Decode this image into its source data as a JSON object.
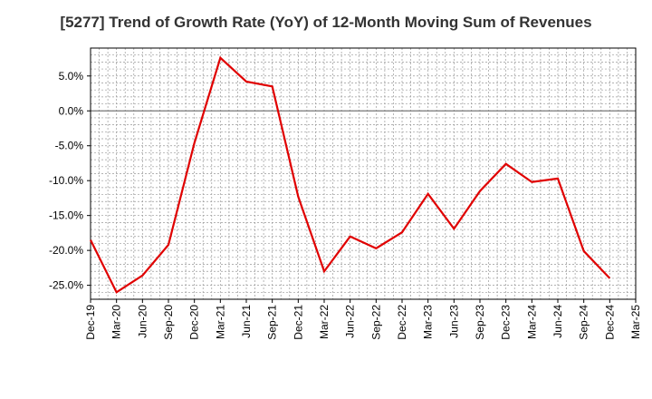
{
  "chart_data": {
    "type": "line",
    "title": "[5277]  Trend of Growth Rate (YoY) of 12-Month Moving Sum of Revenues",
    "xlabel": "",
    "ylabel": "",
    "x_ticks": [
      "Dec-19",
      "Mar-20",
      "Jun-20",
      "Sep-20",
      "Dec-20",
      "Mar-21",
      "Jun-21",
      "Sep-21",
      "Dec-21",
      "Mar-22",
      "Jun-22",
      "Sep-22",
      "Dec-22",
      "Mar-23",
      "Jun-23",
      "Sep-23",
      "Dec-23",
      "Mar-24",
      "Jun-24",
      "Sep-24",
      "Dec-24",
      "Mar-25"
    ],
    "y_ticks": [
      "5.0%",
      "0.0%",
      "-5.0%",
      "-10.0%",
      "-15.0%",
      "-20.0%",
      "-25.0%"
    ],
    "y_tick_values": [
      5,
      0,
      -5,
      -10,
      -15,
      -20,
      -25
    ],
    "ylim": [
      -27,
      9
    ],
    "grid": true,
    "series": [
      {
        "color": "#e00000",
        "x": [
          "Dec-19",
          "Mar-20",
          "Jun-20",
          "Sep-20",
          "Dec-20",
          "Mar-21",
          "Jun-21",
          "Sep-21",
          "Dec-21",
          "Mar-22",
          "Jun-22",
          "Sep-22",
          "Dec-22",
          "Mar-23",
          "Jun-23",
          "Sep-23",
          "Dec-23",
          "Mar-24",
          "Jun-24",
          "Sep-24",
          "Dec-24"
        ],
        "values": [
          -18.5,
          -26.0,
          -23.6,
          -19.2,
          -4.6,
          7.6,
          4.2,
          3.5,
          -12.3,
          -23.0,
          -18.0,
          -19.7,
          -17.4,
          -11.9,
          -16.9,
          -11.5,
          -7.6,
          -10.2,
          -9.7,
          -20.1,
          -24.0
        ]
      }
    ]
  }
}
